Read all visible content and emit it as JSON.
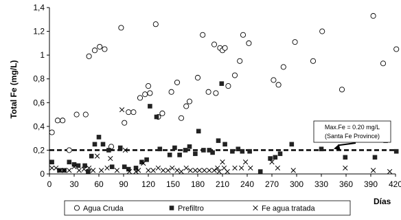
{
  "chart_data": {
    "type": "scatter",
    "title": "",
    "xlabel": "Días",
    "ylabel": "Total Fe (mg/L)",
    "xlim": [
      0,
      420
    ],
    "ylim": [
      0,
      1.4
    ],
    "xticks": [
      0,
      30,
      60,
      90,
      120,
      150,
      180,
      210,
      240,
      270,
      300,
      330,
      360,
      390,
      420
    ],
    "yticks": [
      0,
      0.2,
      0.4,
      0.6,
      0.8,
      1,
      1.2,
      1.4
    ],
    "ytick_labels": [
      "0",
      "0,2",
      "0,4",
      "0,6",
      "0,8",
      "1",
      "1,2",
      "1,4"
    ],
    "grid": false,
    "legend_position": "bottom",
    "reference_line": {
      "y": 0.2,
      "style": "dashed"
    },
    "annotation": {
      "lines": [
        "Max.Fe = 0.20 mg/L",
        "(Santa Fe Province)"
      ],
      "points_to": {
        "x": 345,
        "y": 0.2
      }
    },
    "series": [
      {
        "name": "Agua Cruda",
        "marker": "open-circle",
        "points": [
          [
            3,
            0.35
          ],
          [
            10,
            0.45
          ],
          [
            16,
            0.45
          ],
          [
            24,
            0.2
          ],
          [
            33,
            0.5
          ],
          [
            44,
            0.5
          ],
          [
            48,
            0.99
          ],
          [
            55,
            1.04
          ],
          [
            61,
            1.07
          ],
          [
            67,
            1.05
          ],
          [
            75,
            0.23
          ],
          [
            87,
            1.23
          ],
          [
            91,
            0.43
          ],
          [
            96,
            0.52
          ],
          [
            102,
            0.52
          ],
          [
            110,
            0.64
          ],
          [
            116,
            0.67
          ],
          [
            120,
            0.74
          ],
          [
            122,
            0.68
          ],
          [
            129,
            1.26
          ],
          [
            132,
            0.48
          ],
          [
            137,
            0.51
          ],
          [
            148,
            0.69
          ],
          [
            155,
            0.77
          ],
          [
            160,
            0.47
          ],
          [
            166,
            0.57
          ],
          [
            170,
            0.61
          ],
          [
            180,
            0.81
          ],
          [
            186,
            1.17
          ],
          [
            193,
            0.69
          ],
          [
            200,
            1.09
          ],
          [
            202,
            0.68
          ],
          [
            207,
            1.06
          ],
          [
            210,
            1.04
          ],
          [
            213,
            1.06
          ],
          [
            217,
            0.74
          ],
          [
            225,
            0.83
          ],
          [
            231,
            0.95
          ],
          [
            235,
            1.17
          ],
          [
            242,
            1.1
          ],
          [
            272,
            0.79
          ],
          [
            278,
            0.75
          ],
          [
            284,
            0.9
          ],
          [
            298,
            1.11
          ],
          [
            320,
            0.95
          ],
          [
            331,
            1.2
          ],
          [
            355,
            0.71
          ],
          [
            393,
            1.33
          ],
          [
            405,
            0.93
          ],
          [
            421,
            1.05
          ]
        ]
      },
      {
        "name": "Prefiltro",
        "marker": "filled-square",
        "points": [
          [
            3,
            0.1
          ],
          [
            12,
            0.03
          ],
          [
            18,
            0.03
          ],
          [
            24,
            0.1
          ],
          [
            30,
            0.08
          ],
          [
            35,
            0.07
          ],
          [
            43,
            0.07
          ],
          [
            47,
            0.02
          ],
          [
            51,
            0.15
          ],
          [
            55,
            0.25
          ],
          [
            60,
            0.31
          ],
          [
            65,
            0.25
          ],
          [
            72,
            0.2
          ],
          [
            76,
            0.06
          ],
          [
            86,
            0.22
          ],
          [
            91,
            0.06
          ],
          [
            96,
            0.04
          ],
          [
            105,
            0.05
          ],
          [
            112,
            0.1
          ],
          [
            118,
            0.12
          ],
          [
            122,
            0.57
          ],
          [
            130,
            0.48
          ],
          [
            134,
            0.21
          ],
          [
            146,
            0.16
          ],
          [
            152,
            0.22
          ],
          [
            158,
            0.16
          ],
          [
            165,
            0.2
          ],
          [
            170,
            0.23
          ],
          [
            177,
            0.17
          ],
          [
            181,
            0.36
          ],
          [
            187,
            0.2
          ],
          [
            194,
            0.2
          ],
          [
            198,
            0.18
          ],
          [
            205,
            0.28
          ],
          [
            209,
            0.76
          ],
          [
            213,
            0.25
          ],
          [
            222,
            0.19
          ],
          [
            229,
            0.21
          ],
          [
            234,
            0.19
          ],
          [
            243,
            0.19
          ],
          [
            256,
            0.02
          ],
          [
            268,
            0.13
          ],
          [
            274,
            0.14
          ],
          [
            280,
            0.17
          ],
          [
            294,
            0.25
          ],
          [
            330,
            0.21
          ],
          [
            359,
            0.14
          ],
          [
            395,
            0.14
          ],
          [
            408,
            0.28
          ],
          [
            421,
            0.19
          ]
        ]
      },
      {
        "name": "Fe agua tratada",
        "marker": "cross",
        "points": [
          [
            3,
            0.05
          ],
          [
            8,
            0.05
          ],
          [
            13,
            0.03
          ],
          [
            18,
            0.03
          ],
          [
            24,
            0.03
          ],
          [
            30,
            0.06
          ],
          [
            36,
            0.03
          ],
          [
            42,
            0.04
          ],
          [
            48,
            0.05
          ],
          [
            53,
            0.03
          ],
          [
            58,
            0.15
          ],
          [
            63,
            0.03
          ],
          [
            70,
            0.05
          ],
          [
            74,
            0.13
          ],
          [
            82,
            0.03
          ],
          [
            88,
            0.54
          ],
          [
            92,
            0.2
          ],
          [
            97,
            0.02
          ],
          [
            105,
            0.02
          ],
          [
            108,
            0.03
          ],
          [
            114,
            0.09
          ],
          [
            120,
            0.03
          ],
          [
            126,
            0.03
          ],
          [
            132,
            0.05
          ],
          [
            138,
            0.03
          ],
          [
            144,
            0.03
          ],
          [
            149,
            0.05
          ],
          [
            155,
            0.03
          ],
          [
            160,
            0.02
          ],
          [
            166,
            0.05
          ],
          [
            171,
            0.03
          ],
          [
            177,
            0.03
          ],
          [
            182,
            0.03
          ],
          [
            188,
            0.03
          ],
          [
            194,
            0.03
          ],
          [
            200,
            0.03
          ],
          [
            204,
            0.05
          ],
          [
            206,
            0.02
          ],
          [
            210,
            0.1
          ],
          [
            212,
            0.05
          ],
          [
            216,
            0.02
          ],
          [
            225,
            0.05
          ],
          [
            233,
            0.05
          ],
          [
            238,
            0.1
          ],
          [
            244,
            0.05
          ],
          [
            270,
            0.1
          ],
          [
            277,
            0.05
          ],
          [
            296,
            0.03
          ],
          [
            331,
            0.33
          ],
          [
            359,
            0.05
          ],
          [
            393,
            0.03
          ],
          [
            413,
            0.02
          ]
        ]
      }
    ]
  }
}
